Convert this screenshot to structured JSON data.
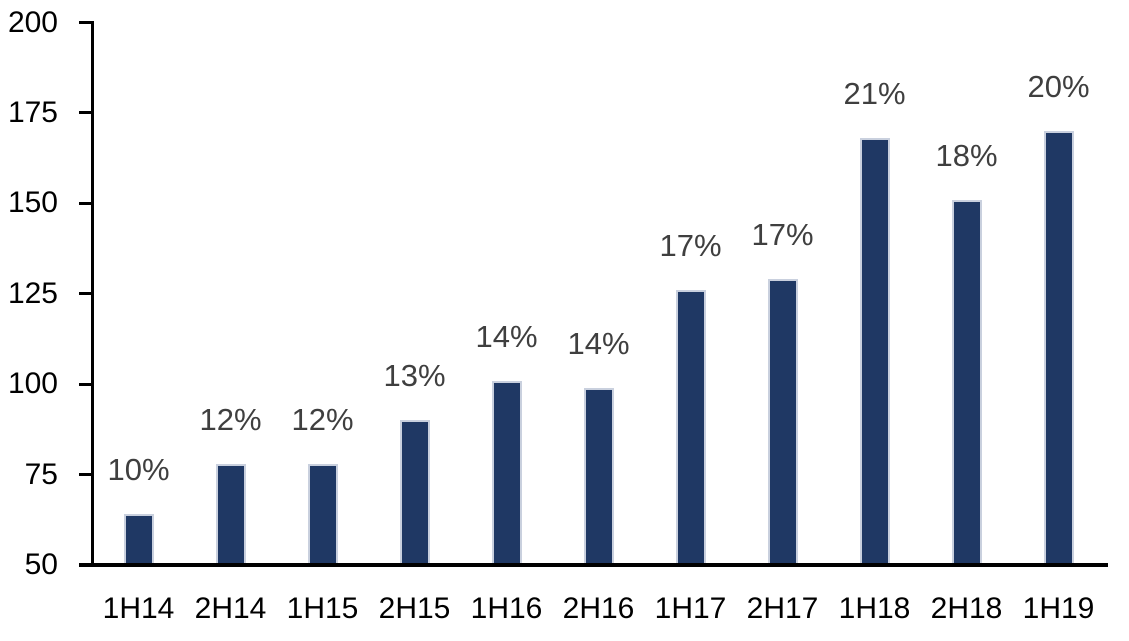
{
  "chart_data": {
    "type": "bar",
    "title": "",
    "categories": [
      "1H14",
      "2H14",
      "1H15",
      "2H15",
      "1H16",
      "2H16",
      "1H17",
      "2H17",
      "1H18",
      "2H18",
      "1H19"
    ],
    "values": [
      64,
      78,
      78,
      90,
      101,
      99,
      126,
      129,
      168,
      151,
      170
    ],
    "data_labels": [
      "10%",
      "12%",
      "12%",
      "13%",
      "14%",
      "14%",
      "17%",
      "17%",
      "21%",
      "18%",
      "20%"
    ],
    "xlabel": "",
    "ylabel": "",
    "ylim": [
      50,
      200
    ],
    "yticks": [
      50,
      75,
      100,
      125,
      150,
      175,
      200
    ],
    "grid": false,
    "legend": false,
    "colors": {
      "bar_fill": "#1f3864",
      "bar_border": "#c9d0de",
      "data_label_text": "#3f3f3f",
      "axis_text": "#000000",
      "axis_line": "#000000",
      "background": "#ffffff"
    }
  }
}
